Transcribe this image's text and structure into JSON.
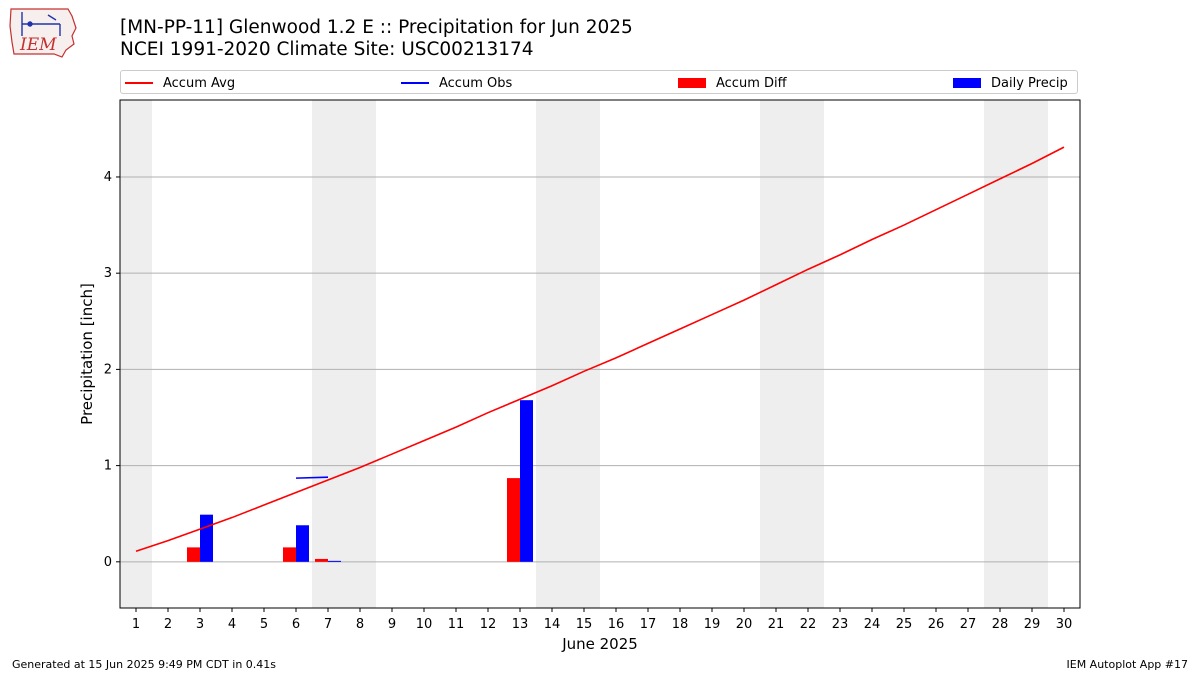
{
  "header": {
    "title_line1": "[MN-PP-11] Glenwood 1.2 E :: Precipitation for Jun 2025",
    "title_line2": "NCEI 1991-2020 Climate Site: USC00213174",
    "logo_text": "IEM"
  },
  "legend": {
    "items": [
      {
        "label": "Accum Avg",
        "kind": "line",
        "color": "#ff0000"
      },
      {
        "label": "Accum Obs",
        "kind": "line",
        "color": "#0000ff"
      },
      {
        "label": "Accum Diff",
        "kind": "box",
        "color": "#ff0000"
      },
      {
        "label": "Daily Precip",
        "kind": "box",
        "color": "#0000ff"
      }
    ]
  },
  "footer": {
    "generated": "Generated at 15 Jun 2025 9:49 PM CDT in 0.41s",
    "app": "IEM Autoplot App #17"
  },
  "chart_data": {
    "type": "bar",
    "xlabel": "June 2025",
    "ylabel": "Precipitation [inch]",
    "xlim": [
      0.5,
      30.5
    ],
    "ylim": [
      -0.48,
      4.8
    ],
    "x_ticks": [
      1,
      2,
      3,
      4,
      5,
      6,
      7,
      8,
      9,
      10,
      11,
      12,
      13,
      14,
      15,
      16,
      17,
      18,
      19,
      20,
      21,
      22,
      23,
      24,
      25,
      26,
      27,
      28,
      29,
      30
    ],
    "y_ticks": [
      0,
      1,
      2,
      3,
      4
    ],
    "grid": "horizontal",
    "weekend_shading": [
      [
        0.5,
        1.5
      ],
      [
        6.5,
        8.5
      ],
      [
        13.5,
        15.5
      ],
      [
        20.5,
        22.5
      ],
      [
        27.5,
        29.5
      ]
    ],
    "accum_avg": {
      "name": "Accum Avg",
      "color": "#ff0000",
      "x": [
        1,
        2,
        3,
        4,
        5,
        6,
        7,
        8,
        9,
        10,
        11,
        12,
        13,
        14,
        15,
        16,
        17,
        18,
        19,
        20,
        21,
        22,
        23,
        24,
        25,
        26,
        27,
        28,
        29,
        30
      ],
      "y": [
        0.11,
        0.22,
        0.34,
        0.46,
        0.59,
        0.72,
        0.85,
        0.98,
        1.12,
        1.26,
        1.4,
        1.55,
        1.69,
        1.83,
        1.98,
        2.12,
        2.27,
        2.42,
        2.57,
        2.72,
        2.88,
        3.04,
        3.19,
        3.35,
        3.5,
        3.66,
        3.82,
        3.98,
        4.14,
        4.31
      ]
    },
    "accum_obs": {
      "name": "Accum Obs",
      "color": "#0000ff",
      "x": [
        6,
        7
      ],
      "y": [
        0.87,
        0.88
      ]
    },
    "accum_diff": {
      "name": "Accum Diff",
      "color": "#ff0000",
      "x": [
        3,
        6,
        7,
        13
      ],
      "values": [
        0.15,
        0.15,
        0.03,
        0.87
      ]
    },
    "daily_precip": {
      "name": "Daily Precip",
      "color": "#0000ff",
      "x": [
        3,
        6,
        7,
        13
      ],
      "values": [
        0.49,
        0.38,
        0.01,
        1.68
      ]
    }
  }
}
